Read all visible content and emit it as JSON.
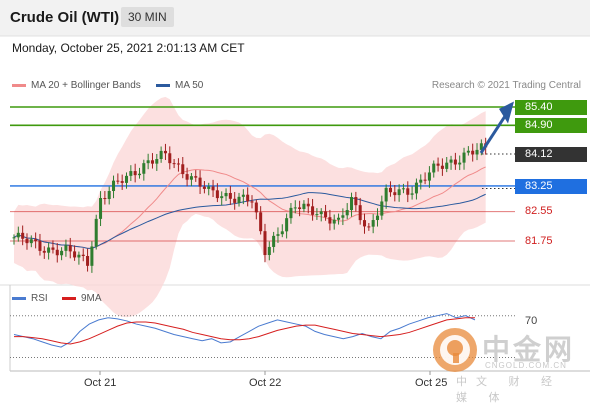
{
  "header": {
    "title": "Crude Oil (WTI)",
    "timeframe": "30 MIN"
  },
  "datetime": "Monday, October 25, 2021 2:01:13 AM CET",
  "legend": {
    "ma20": {
      "label": "MA 20 + Bollinger Bands",
      "color": "#f08a8a"
    },
    "ma50": {
      "label": "MA 50",
      "color": "#2b5a9e"
    }
  },
  "credit": "Research © 2021 Trading Central",
  "rsi_legend": {
    "rsi": {
      "label": "RSI",
      "color": "#4a7bd0"
    },
    "ma9": {
      "label": "9MA",
      "color": "#d61f1f"
    }
  },
  "levels": {
    "r2": {
      "value": "85.40",
      "color": "#3f9a0e"
    },
    "r1": {
      "value": "84.90",
      "color": "#3f9a0e"
    },
    "last": {
      "value": "84.12",
      "color": "#333333"
    },
    "pivot": {
      "value": "83.25",
      "color": "#1f6fe0"
    },
    "s1": {
      "value": "82.55",
      "color": "#d02020"
    },
    "s2": {
      "value": "81.75",
      "color": "#d02020"
    }
  },
  "rsi_level": "70",
  "x_axis": {
    "labels": [
      "Oct 21",
      "Oct 22",
      "Oct 25"
    ]
  },
  "watermark": {
    "name": "中金网",
    "domain": "CNGOLD.COM.CN",
    "tagline": "中文 财 经 媒 体"
  },
  "chart_data": {
    "type": "candlestick",
    "instrument": "Crude Oil (WTI)",
    "interval": "30 MIN",
    "price_levels": [
      85.4,
      84.9,
      84.12,
      83.25,
      82.55,
      81.75
    ],
    "close_path": [
      [
        0,
        81.85
      ],
      [
        6,
        81.6
      ],
      [
        12,
        81.45
      ],
      [
        17,
        81.2
      ],
      [
        20,
        82.9
      ],
      [
        25,
        83.4
      ],
      [
        30,
        83.85
      ],
      [
        35,
        84.05
      ],
      [
        40,
        83.6
      ],
      [
        45,
        83.05
      ],
      [
        50,
        83.0
      ],
      [
        55,
        82.8
      ],
      [
        58,
        81.5
      ],
      [
        60,
        81.85
      ],
      [
        65,
        82.65
      ],
      [
        70,
        82.6
      ],
      [
        75,
        82.2
      ],
      [
        78,
        82.85
      ],
      [
        82,
        82.1
      ],
      [
        86,
        83.0
      ],
      [
        92,
        83.2
      ],
      [
        98,
        83.75
      ],
      [
        104,
        84.1
      ],
      [
        109,
        84.25
      ]
    ],
    "x_ticks": [
      {
        "label": "Oct 21",
        "x": 20
      },
      {
        "label": "Oct 22",
        "x": 60
      },
      {
        "label": "Oct 25",
        "x": 100
      }
    ],
    "rsi": {
      "level": 70,
      "values": [
        52,
        50,
        48,
        45,
        42,
        40,
        45,
        55,
        62,
        66,
        68,
        67,
        65,
        62,
        60,
        58,
        55,
        52,
        50,
        48,
        46,
        48,
        44,
        45,
        50,
        55,
        60,
        63,
        66,
        64,
        62,
        60,
        55,
        52,
        50,
        48,
        50,
        53,
        50,
        48,
        55,
        58,
        62,
        65,
        68,
        70,
        72,
        68,
        70,
        66
      ],
      "ma9": [
        50,
        50,
        49,
        48,
        46,
        44,
        43,
        45,
        48,
        52,
        56,
        60,
        63,
        64,
        64,
        63,
        61,
        59,
        57,
        54,
        52,
        50,
        48,
        47,
        47,
        48,
        50,
        53,
        56,
        58,
        60,
        61,
        61,
        59,
        57,
        55,
        53,
        52,
        51,
        50,
        51,
        52,
        54,
        57,
        60,
        63,
        66,
        67,
        68,
        68
      ]
    }
  }
}
